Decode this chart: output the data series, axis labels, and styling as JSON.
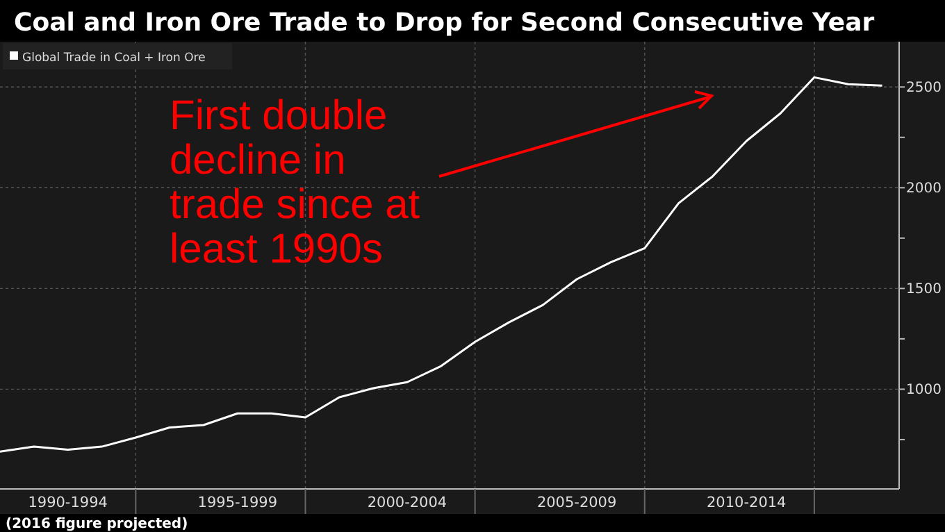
{
  "chart_data": {
    "type": "line",
    "title": "Coal and Iron Ore Trade to Drop for Second Consecutive Year",
    "categories": [
      null,
      null,
      "1990-1994",
      null,
      null,
      null,
      null,
      "1995-1999",
      null,
      null,
      null,
      null,
      "2000-2004",
      null,
      null,
      null,
      null,
      "2005-2009",
      null,
      null,
      null,
      null,
      "2010-2014",
      null,
      null,
      null,
      null
    ],
    "series": [
      {
        "name": "Global Trade in Coal + Iron Ore",
        "color": "#ffffff",
        "values": [
          690,
          715,
          700,
          715,
          760,
          810,
          822,
          880,
          880,
          860,
          960,
          1005,
          1035,
          1115,
          1235,
          1332,
          1418,
          1546,
          1630,
          1700,
          1923,
          2056,
          2232,
          2369,
          2548,
          2514,
          2507
        ]
      }
    ],
    "ylim": [
      505,
      2725
    ],
    "yticks": [
      {
        "value": 750,
        "label": null
      },
      1000,
      {
        "value": 1250,
        "label": null
      },
      1500,
      {
        "value": 1750,
        "label": null
      },
      2000,
      {
        "value": 2250,
        "label": null
      },
      2500
    ],
    "grid": true,
    "legend": "top left",
    "marker": "none",
    "line_style": "solid",
    "annotations": [
      "First double decline in trade since at least 1990s",
      "(2016 figure projected)"
    ]
  }
}
